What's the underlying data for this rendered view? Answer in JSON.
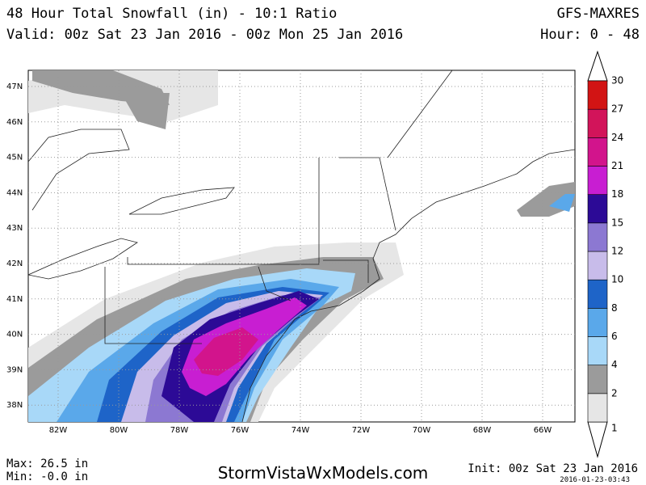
{
  "header": {
    "title": "48 Hour Total Snowfall (in) - 10:1 Ratio",
    "model": "GFS-MAXRES",
    "valid": "Valid: 00z Sat 23 Jan 2016 - 00z Mon 25 Jan 2016",
    "hour": "Hour: 0 - 48"
  },
  "map": {
    "lat_labels": [
      "47N",
      "46N",
      "45N",
      "44N",
      "43N",
      "42N",
      "41N",
      "40N",
      "39N",
      "38N"
    ],
    "lon_labels": [
      "82W",
      "80W",
      "78W",
      "76W",
      "74W",
      "72W",
      "70W",
      "68W",
      "66W"
    ]
  },
  "colorbar": {
    "levels": [
      1,
      2,
      4,
      6,
      8,
      10,
      12,
      15,
      18,
      21,
      24,
      27,
      30
    ],
    "colors": [
      "#e6e6e6",
      "#9b9b9b",
      "#a8d8f8",
      "#5aa8ea",
      "#1e64c8",
      "#c8bcea",
      "#8c78d2",
      "#2c0a96",
      "#c81ed2",
      "#d2148c",
      "#d2145a",
      "#d21414"
    ]
  },
  "footer": {
    "max": "Max: 26.5 in",
    "min": "Min: -0.0 in",
    "site": "StormVistaWxModels.com",
    "init": "Init: 00z Sat 23 Jan 2016",
    "stamp": "2016-01-23-03:43"
  }
}
